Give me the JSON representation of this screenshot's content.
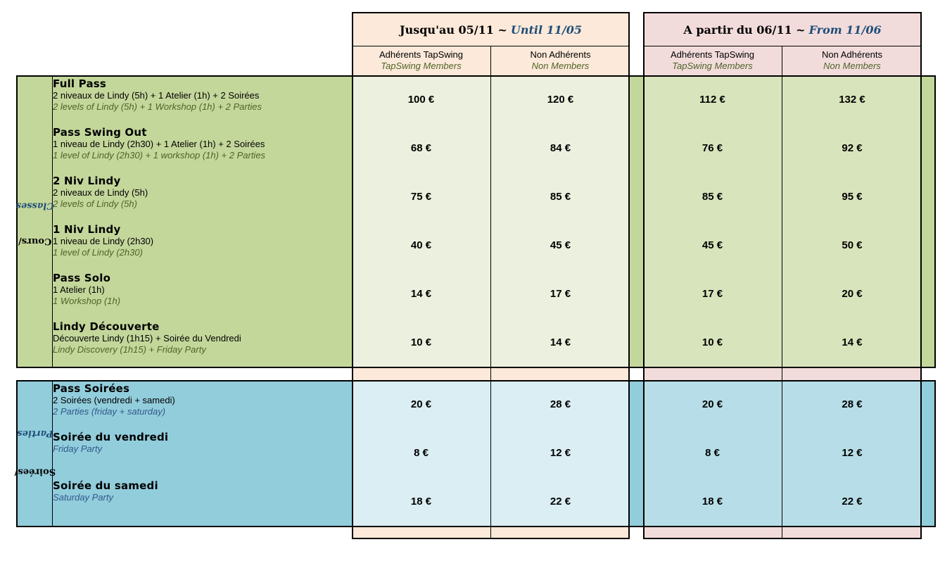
{
  "periods": [
    {
      "fr": "Jusqu'au 05/11 ~",
      "en": "Until 11/05"
    },
    {
      "fr": "A partir du 06/11 ~",
      "en": "From 11/06"
    }
  ],
  "columns": [
    {
      "fr": "Adhérents TapSwing",
      "en": "TapSwing Members"
    },
    {
      "fr": "Non Adhérents",
      "en": "Non Members"
    },
    {
      "fr": "Adhérents TapSwing",
      "en": "TapSwing Members"
    },
    {
      "fr": "Non Adhérents",
      "en": "Non Members"
    }
  ],
  "sections": {
    "classes": {
      "fr": "Cours/",
      "en": "Classes"
    },
    "parties": {
      "fr": "Soirées/",
      "en": "Parties"
    }
  },
  "classes": [
    {
      "name": "Full Pass",
      "fr": "2 niveaux de Lindy (5h) + 1 Atelier (1h) + 2 Soirées",
      "en": "2 levels of Lindy (5h) + 1 Workshop (1h) + 2 Parties",
      "prices": [
        "100 €",
        "120 €",
        "112 €",
        "132 €"
      ]
    },
    {
      "name": "Pass Swing Out",
      "fr": "1 niveau de Lindy (2h30) + 1 Atelier (1h) + 2 Soirées",
      "en": "1 level of Lindy (2h30) + 1 workshop (1h) + 2 Parties",
      "prices": [
        "68 €",
        "84 €",
        "76 €",
        "92 €"
      ]
    },
    {
      "name": "2 Niv Lindy",
      "fr": "2 niveaux de Lindy (5h)",
      "en": "2 levels of Lindy (5h)",
      "prices": [
        "75 €",
        "85 €",
        "85 €",
        "95 €"
      ]
    },
    {
      "name": "1 Niv Lindy",
      "fr": "1 niveau de Lindy (2h30)",
      "en": "1 level of Lindy (2h30)",
      "prices": [
        "40 €",
        "45 €",
        "45 €",
        "50 €"
      ]
    },
    {
      "name": "Pass Solo",
      "fr": "1 Atelier (1h)",
      "en": "1 Workshop (1h)",
      "prices": [
        "14 €",
        "17 €",
        "17 €",
        "20 €"
      ]
    },
    {
      "name": "Lindy Découverte",
      "fr": "Découverte Lindy (1h15) + Soirée du Vendredi",
      "en": "Lindy Discovery (1h15) + Friday Party",
      "prices": [
        "10 €",
        "14 €",
        "10 €",
        "14 €"
      ]
    }
  ],
  "parties": [
    {
      "name": "Pass Soirées",
      "fr": "2 Soirées (vendredi + samedi)",
      "en": "2 Parties (friday + saturday)",
      "prices": [
        "20 €",
        "28 €",
        "20 €",
        "28 €"
      ]
    },
    {
      "name": "Soirée du vendredi",
      "fr": "",
      "en": "Friday Party",
      "prices": [
        "8 €",
        "12 €",
        "8 €",
        "12 €"
      ]
    },
    {
      "name": "Soirée du samedi",
      "fr": "",
      "en": "Saturday Party",
      "prices": [
        "18 €",
        "22 €",
        "18 €",
        "22 €"
      ]
    }
  ],
  "colors": {
    "classes_band": "#c4d79b",
    "parties_band": "#92cddc",
    "period1": "#fde9d9",
    "period2": "#f2dcdb"
  }
}
